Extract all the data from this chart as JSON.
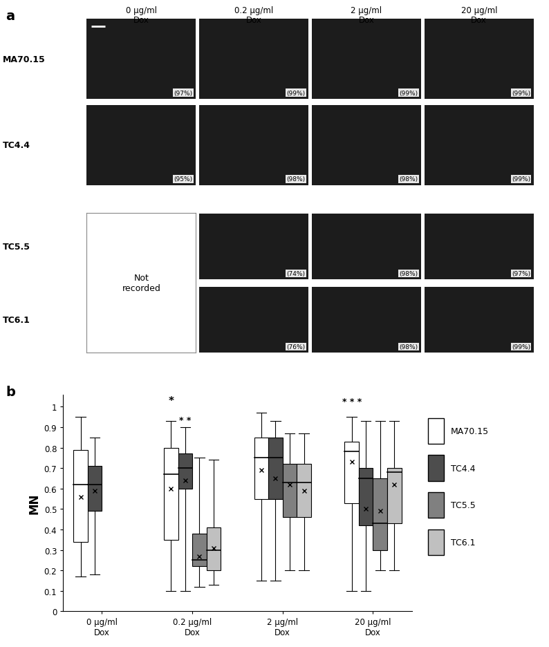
{
  "panel_b": {
    "series": [
      "MA70.15",
      "TC4.4",
      "TC5.5",
      "TC6.1"
    ],
    "colors": [
      "#ffffff",
      "#4d4d4d",
      "#808080",
      "#c0c0c0"
    ],
    "edge_colors": [
      "#000000",
      "#000000",
      "#000000",
      "#000000"
    ],
    "boxplot_data": {
      "MA70.15": {
        "0": {
          "whislo": 0.17,
          "q1": 0.34,
          "med": 0.62,
          "q3": 0.79,
          "whishi": 0.95,
          "mean": 0.56
        },
        "0.2": {
          "whislo": 0.1,
          "q1": 0.35,
          "med": 0.67,
          "q3": 0.8,
          "whishi": 0.93,
          "mean": 0.6
        },
        "2": {
          "whislo": 0.15,
          "q1": 0.55,
          "med": 0.75,
          "q3": 0.85,
          "whishi": 0.97,
          "mean": 0.69
        },
        "20": {
          "whislo": 0.1,
          "q1": 0.53,
          "med": 0.78,
          "q3": 0.83,
          "whishi": 0.95,
          "mean": 0.73
        }
      },
      "TC4.4": {
        "0": {
          "whislo": 0.18,
          "q1": 0.49,
          "med": 0.62,
          "q3": 0.71,
          "whishi": 0.85,
          "mean": 0.59
        },
        "0.2": {
          "whislo": 0.1,
          "q1": 0.6,
          "med": 0.7,
          "q3": 0.77,
          "whishi": 0.9,
          "mean": 0.64
        },
        "2": {
          "whislo": 0.15,
          "q1": 0.55,
          "med": 0.75,
          "q3": 0.85,
          "whishi": 0.93,
          "mean": 0.65
        },
        "20": {
          "whislo": 0.1,
          "q1": 0.42,
          "med": 0.65,
          "q3": 0.7,
          "whishi": 0.93,
          "mean": 0.5
        }
      },
      "TC5.5": {
        "0": null,
        "0.2": {
          "whislo": 0.12,
          "q1": 0.22,
          "med": 0.25,
          "q3": 0.38,
          "whishi": 0.75,
          "mean": 0.27
        },
        "2": {
          "whislo": 0.2,
          "q1": 0.46,
          "med": 0.63,
          "q3": 0.72,
          "whishi": 0.87,
          "mean": 0.62
        },
        "20": {
          "whislo": 0.2,
          "q1": 0.3,
          "med": 0.43,
          "q3": 0.65,
          "whishi": 0.93,
          "mean": 0.49
        }
      },
      "TC6.1": {
        "0": null,
        "0.2": {
          "whislo": 0.13,
          "q1": 0.2,
          "med": 0.3,
          "q3": 0.41,
          "whishi": 0.74,
          "mean": 0.31
        },
        "2": {
          "whislo": 0.2,
          "q1": 0.46,
          "med": 0.63,
          "q3": 0.72,
          "whishi": 0.87,
          "mean": 0.59
        },
        "20": {
          "whislo": 0.2,
          "q1": 0.43,
          "med": 0.68,
          "q3": 0.7,
          "whishi": 0.93,
          "mean": 0.62
        }
      }
    },
    "ylabel": "MN",
    "yticks": [
      0,
      0.1,
      0.2,
      0.3,
      0.4,
      0.5,
      0.6,
      0.7,
      0.8,
      0.9,
      1
    ]
  },
  "panel_a": {
    "row_labels": [
      "MA70.15",
      "TC4.4",
      "TC5.5",
      "TC6.1"
    ],
    "col_labels": [
      "0 µg/ml\nDox",
      "0.2 µg/ml\nDox",
      "2 µg/ml\nDox",
      "20 µg/ml\nDox"
    ],
    "percentages": {
      "0_0": "(97%)",
      "0_1": "(99%)",
      "0_2": "(99%)",
      "0_3": "(99%)",
      "1_0": "(95%)",
      "1_1": "(98%)",
      "1_2": "(98%)",
      "1_3": "(99%)",
      "2_1": "(74%)",
      "2_2": "(98%)",
      "2_3": "(97%)",
      "3_1": "(76%)",
      "3_2": "(98%)",
      "3_3": "(99%)"
    }
  },
  "fig_width": 7.94,
  "fig_height": 9.37,
  "dpi": 100
}
